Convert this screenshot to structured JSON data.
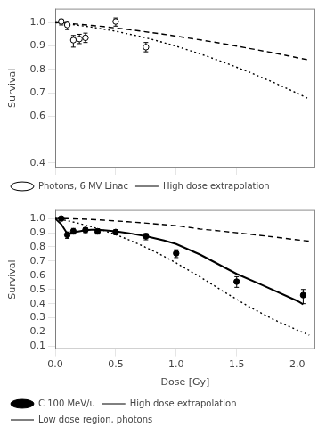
{
  "chart_data": [
    {
      "type": "scatter",
      "ylabel": "Survival",
      "xlim": [
        0.0,
        2.15
      ],
      "xticks": [
        {
          "value": 0,
          "label": "0.0"
        },
        0.5,
        {
          "value": 1,
          "label": "1.0"
        },
        1.5,
        {
          "value": 2,
          "label": "2.0"
        }
      ],
      "ylim": [
        0.38,
        1.06
      ],
      "yticks": [
        0.4,
        0.6,
        0.7,
        0.8,
        0.9,
        {
          "value": 1,
          "label": "1.0"
        }
      ],
      "grid": false,
      "legend": "lower left",
      "tick_labels": "y",
      "series": [
        {
          "name": "Photons, 6 MV Linac",
          "type": "scatter",
          "marker": "open_circle",
          "color": "black",
          "x": [
            0.05,
            0.1,
            0.15,
            0.2,
            0.25,
            0.5,
            0.75
          ],
          "values": [
            1.005,
            0.99,
            0.925,
            0.93,
            0.935,
            1.005,
            0.895
          ],
          "error_low": [
            0.015,
            0.02,
            0.03,
            0.02,
            0.02,
            0.02,
            0.02
          ],
          "error_high": [
            0.01,
            0.015,
            0.02,
            0.02,
            0.02,
            0.015,
            0.02
          ]
        },
        {
          "type": "line",
          "line_style": "dashed",
          "color": "black",
          "x": [
            0.0,
            0.05,
            0.1,
            0.2,
            0.3,
            0.4,
            0.5,
            0.6,
            0.7,
            0.8,
            0.9,
            1.0,
            1.2,
            1.4,
            1.6,
            1.8,
            2.0,
            2.1
          ],
          "values": [
            1.0,
            0.999,
            0.997,
            0.993,
            0.988,
            0.983,
            0.977,
            0.971,
            0.964,
            0.957,
            0.95,
            0.942,
            0.926,
            0.909,
            0.89,
            0.871,
            0.85,
            0.84
          ]
        },
        {
          "name": "High dose extrapolation",
          "type": "line",
          "line_style": "dotted",
          "color": "black",
          "x": [
            0.0,
            0.1,
            0.2,
            0.3,
            0.4,
            0.5,
            0.6,
            0.7,
            0.8,
            0.9,
            1.0,
            1.2,
            1.4,
            1.6,
            1.8,
            2.0,
            2.1
          ],
          "values": [
            1.0,
            0.995,
            0.988,
            0.981,
            0.972,
            0.963,
            0.952,
            0.941,
            0.928,
            0.914,
            0.899,
            0.866,
            0.829,
            0.789,
            0.745,
            0.698,
            0.673
          ]
        }
      ]
    },
    {
      "type": "scatter",
      "xlabel": "Dose [Gy]",
      "ylabel": "Survival",
      "xlim": [
        0.0,
        2.15
      ],
      "xticks": [
        {
          "value": 0,
          "label": "0.0"
        },
        0.5,
        {
          "value": 1,
          "label": "1.0"
        },
        1.5,
        {
          "value": 2,
          "label": "2.0"
        }
      ],
      "ylim": [
        0.08,
        1.06
      ],
      "yticks": [
        0.1,
        0.2,
        0.3,
        0.4,
        0.5,
        0.6,
        0.7,
        0.8,
        0.9,
        {
          "value": 1,
          "label": "1.0"
        }
      ],
      "grid": false,
      "legend": "lower left",
      "series": [
        {
          "name": "C 100 MeV/u",
          "type": "scatter",
          "marker": "circle",
          "color": "black",
          "x": [
            0.05,
            0.1,
            0.15,
            0.25,
            0.35,
            0.5,
            0.75,
            1.0,
            1.5,
            2.05
          ],
          "values": [
            1.0,
            0.885,
            0.91,
            0.92,
            0.91,
            0.905,
            0.875,
            0.755,
            0.555,
            0.46
          ],
          "error_low": [
            0.01,
            0.025,
            0.02,
            0.02,
            0.02,
            0.02,
            0.025,
            0.03,
            0.04,
            0.06
          ],
          "error_high": [
            0.005,
            0.02,
            0.02,
            0.015,
            0.015,
            0.015,
            0.02,
            0.025,
            0.035,
            0.04
          ]
        },
        {
          "type": "line",
          "line_style": "solid",
          "color": "black",
          "x": [
            0.0,
            0.05,
            0.1,
            0.15,
            0.2,
            0.25,
            0.3,
            0.35,
            0.4,
            0.5,
            0.6,
            0.75,
            0.9,
            1.0,
            1.2,
            1.5,
            1.7,
            2.0,
            2.05
          ],
          "values": [
            1.0,
            0.96,
            0.893,
            0.902,
            0.91,
            0.918,
            0.921,
            0.921,
            0.918,
            0.91,
            0.898,
            0.875,
            0.845,
            0.82,
            0.745,
            0.61,
            0.535,
            0.42,
            0.395
          ]
        },
        {
          "name": "High dose extrapolation",
          "type": "line",
          "line_style": "dotted",
          "color": "black",
          "x": [
            0.0,
            0.1,
            0.2,
            0.3,
            0.4,
            0.5,
            0.6,
            0.7,
            0.8,
            0.9,
            1.0,
            1.2,
            1.4,
            1.6,
            1.8,
            2.0,
            2.1
          ],
          "values": [
            1.0,
            0.985,
            0.965,
            0.942,
            0.916,
            0.886,
            0.853,
            0.816,
            0.776,
            0.733,
            0.687,
            0.587,
            0.481,
            0.38,
            0.29,
            0.215,
            0.178
          ]
        },
        {
          "name": "Low dose region, photons",
          "type": "line",
          "line_style": "dashed",
          "color": "black",
          "x": [
            0.0,
            0.1,
            0.2,
            0.3,
            0.4,
            0.5,
            0.6,
            0.7,
            0.8,
            0.9,
            1.0,
            1.2,
            1.4,
            1.6,
            1.8,
            2.0,
            2.1
          ],
          "values": [
            1.0,
            0.999,
            0.997,
            0.993,
            0.988,
            0.983,
            0.977,
            0.971,
            0.964,
            0.957,
            0.95,
            0.926,
            0.909,
            0.89,
            0.871,
            0.85,
            0.84
          ]
        }
      ]
    }
  ]
}
